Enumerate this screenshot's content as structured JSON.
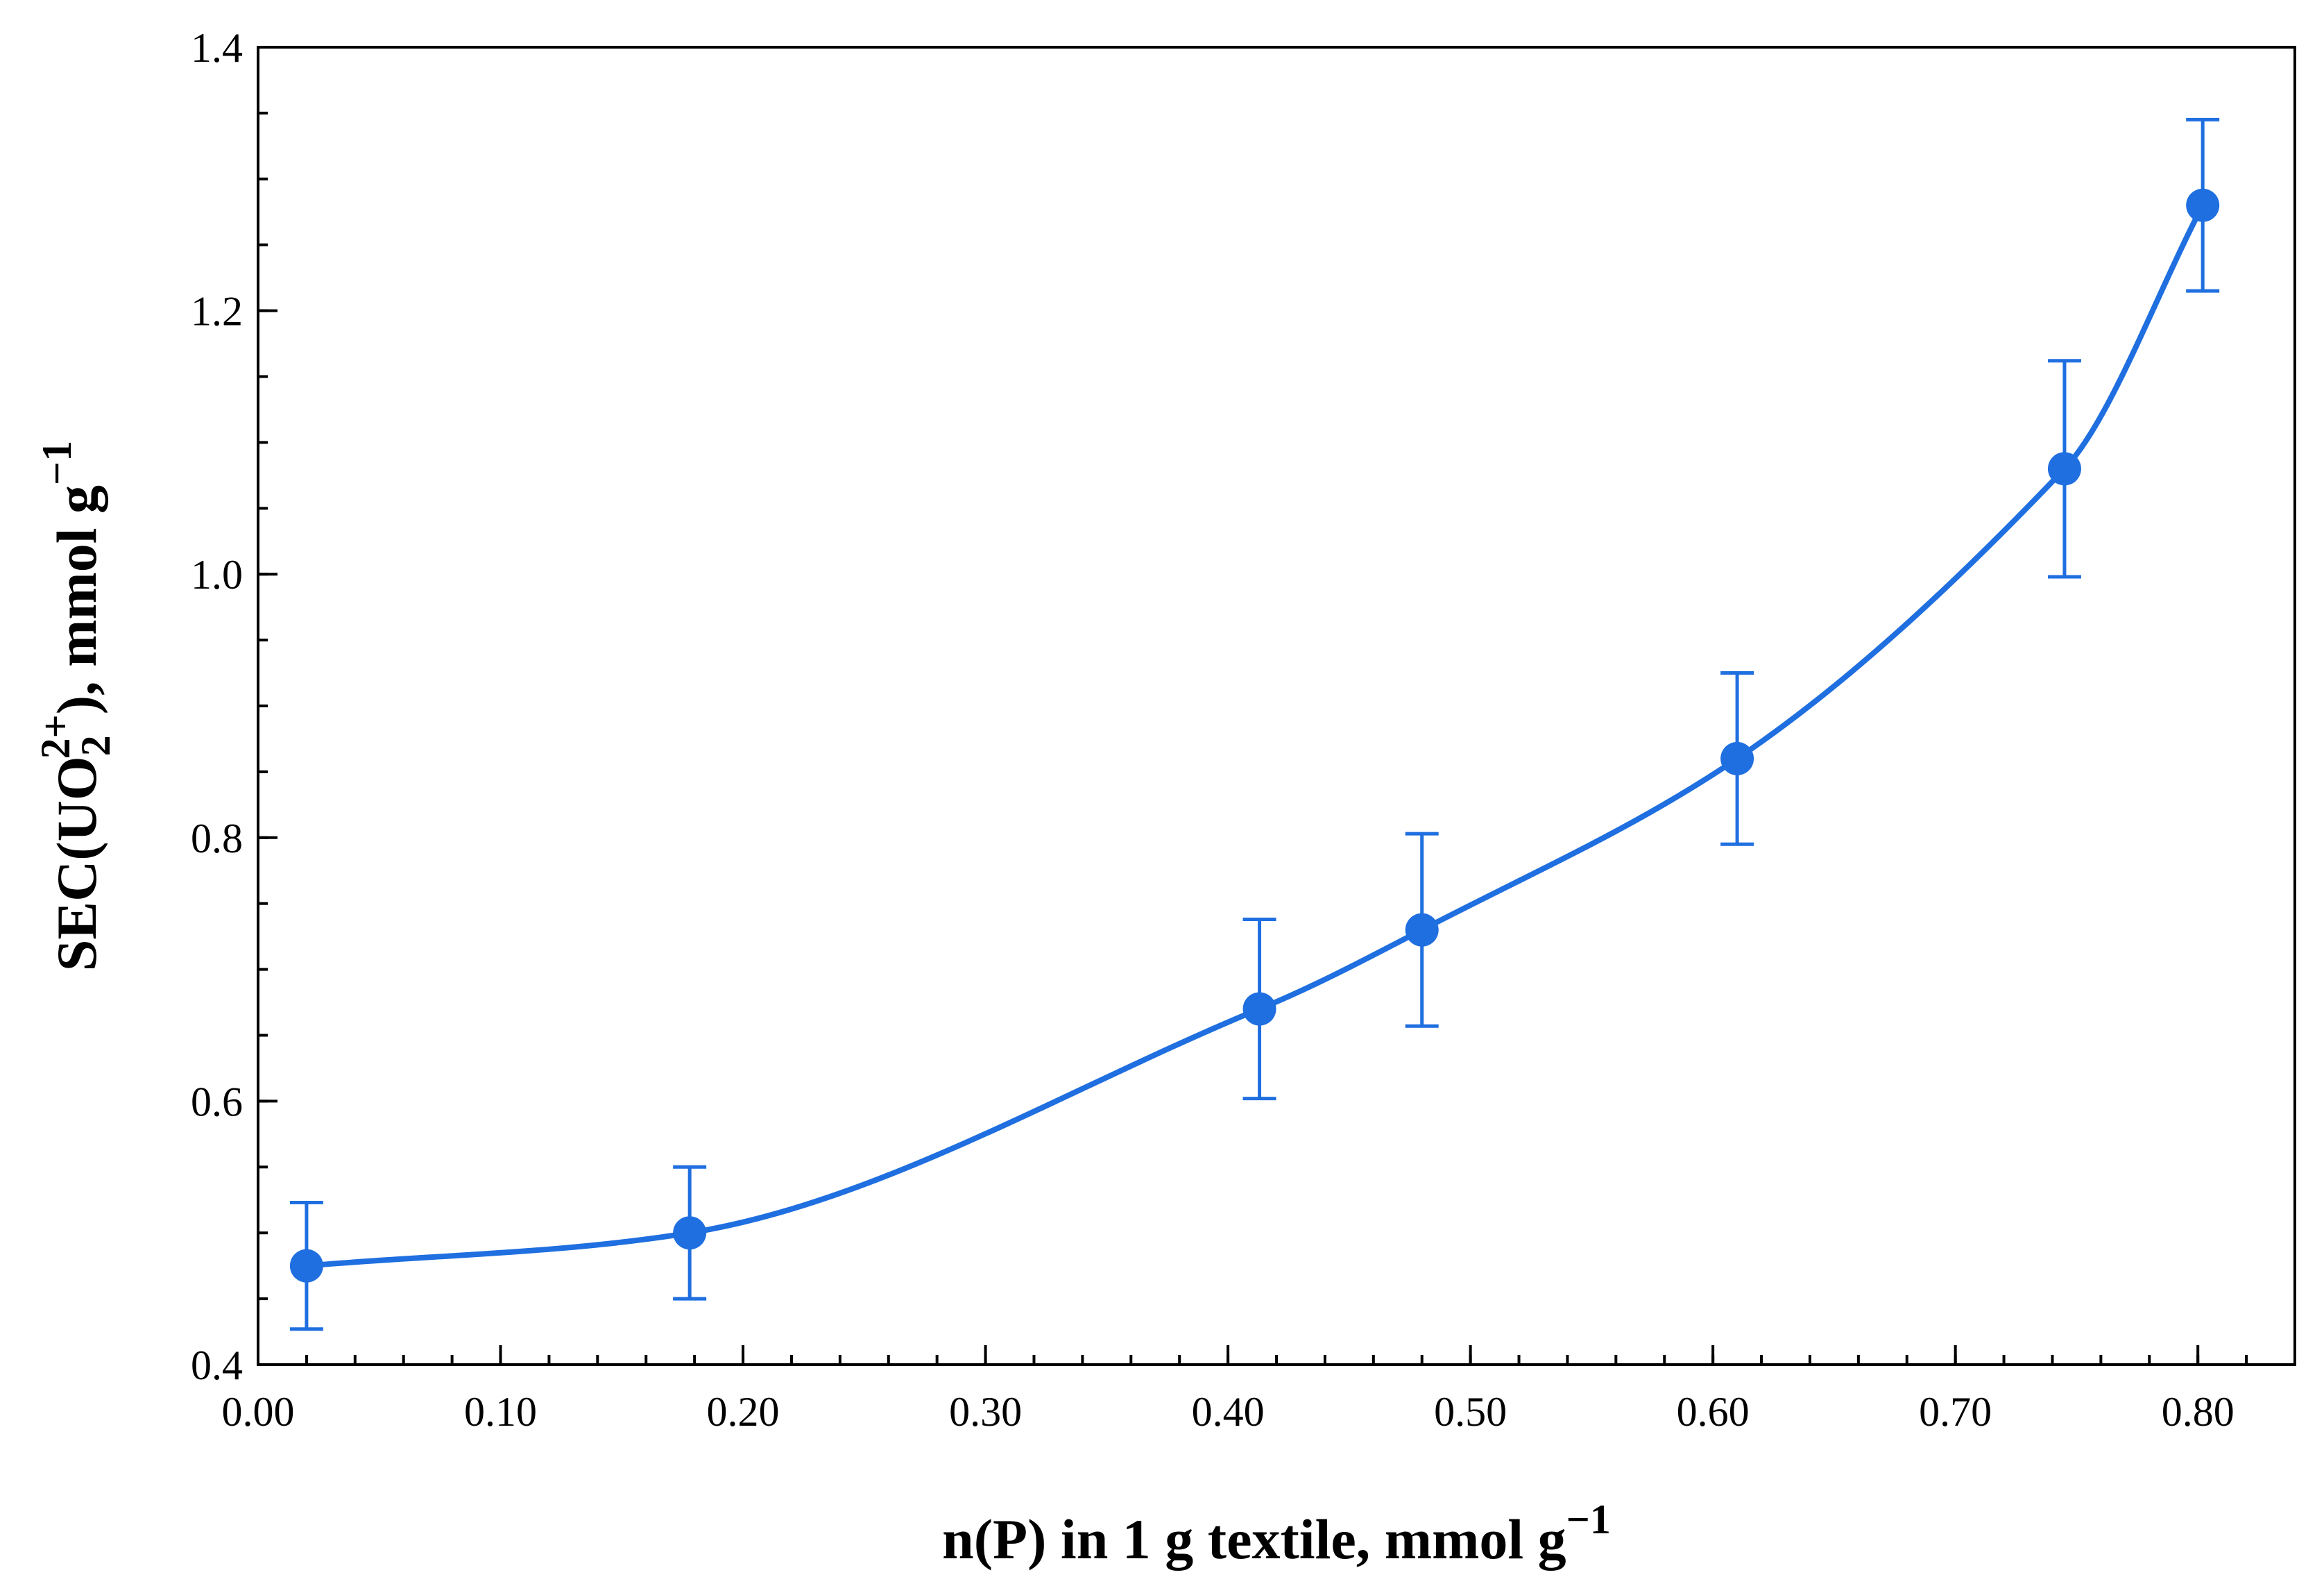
{
  "chart_data": {
    "type": "scatter",
    "xlabel": "n(P) in 1 g textile, mmol g−1",
    "xlabel_parts": {
      "main": "n(P) in 1 g textile, mmol g",
      "sup": "−1"
    },
    "ylabel": "SEC(UO2 2+), mmol g−1",
    "ylabel_parts": {
      "pre": "SEC(UO",
      "sub": "2",
      "sup_ion": "2+",
      "post": "), mmol g",
      "sup": "−1"
    },
    "xlim": [
      0.0,
      0.84
    ],
    "ylim": [
      0.4,
      1.4
    ],
    "x_ticks": [
      {
        "value": 0.0,
        "label": "0.00"
      },
      {
        "value": 0.1,
        "label": "0.10"
      },
      {
        "value": 0.2,
        "label": "0.20"
      },
      {
        "value": 0.3,
        "label": "0.30"
      },
      {
        "value": 0.4,
        "label": "0.40"
      },
      {
        "value": 0.5,
        "label": "0.50"
      },
      {
        "value": 0.6,
        "label": "0.60"
      },
      {
        "value": 0.7,
        "label": "0.70"
      },
      {
        "value": 0.8,
        "label": "0.80"
      }
    ],
    "x_minor_step": 0.02,
    "y_ticks": [
      {
        "value": 0.4,
        "label": "0.4"
      },
      {
        "value": 0.6,
        "label": "0.6"
      },
      {
        "value": 0.8,
        "label": "0.8"
      },
      {
        "value": 1.0,
        "label": "1.0"
      },
      {
        "value": 1.2,
        "label": "1.2"
      },
      {
        "value": 1.4,
        "label": "1.4"
      }
    ],
    "y_minor_step": 0.05,
    "grid": false,
    "legend": "none",
    "color": "#1f6fe0",
    "series": [
      {
        "x": [
          0.02,
          0.178,
          0.413,
          0.48,
          0.61,
          0.745,
          0.802
        ],
        "y": [
          0.475,
          0.5,
          0.67,
          0.73,
          0.86,
          1.08,
          1.28
        ],
        "yerr": [
          0.048,
          0.05,
          0.068,
          0.073,
          0.065,
          0.082,
          0.065
        ]
      }
    ]
  }
}
